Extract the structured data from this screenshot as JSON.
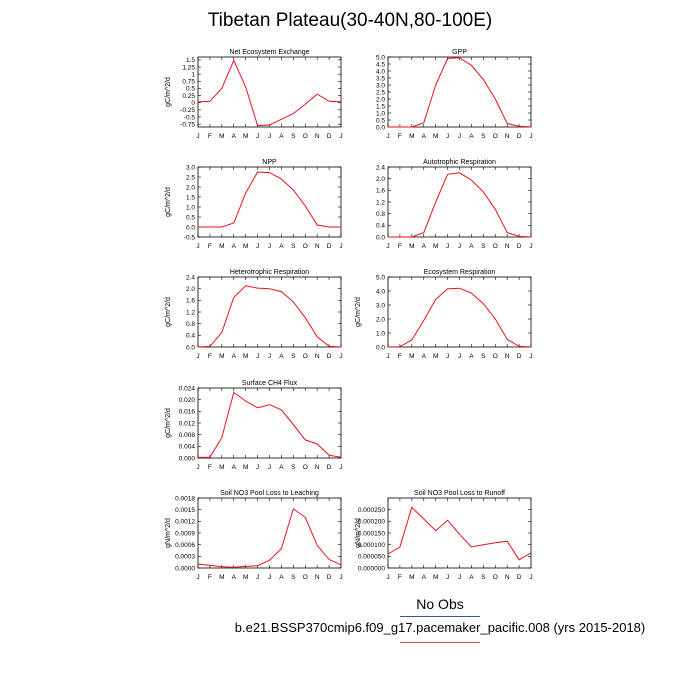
{
  "figure": {
    "title": "Tibetan Plateau(30-40N,80-100E)",
    "legend_label": "No Obs",
    "caption": "b.e21.BSSP370cmip6.f09_g17.pacemaker_pacific.008 (yrs 2015-2018)",
    "line_color": "#e8121a"
  },
  "chart_data": [
    {
      "type": "line",
      "title": "Net Ecosystem Exchange",
      "ylabel": "gC/m^2/d",
      "xlabel": "",
      "categories": [
        "J",
        "F",
        "M",
        "A",
        "M",
        "J",
        "J",
        "A",
        "S",
        "O",
        "N",
        "D",
        "J"
      ],
      "values": [
        0.03,
        0.05,
        0.5,
        1.48,
        0.55,
        -0.8,
        -0.78,
        -0.58,
        -0.38,
        -0.05,
        0.3,
        0.05,
        0.03
      ],
      "ylim": [
        -0.85,
        1.6
      ],
      "yticks": [
        -0.75,
        -0.5,
        -0.25,
        0,
        0.25,
        0.5,
        0.75,
        1,
        1.25,
        1.5
      ],
      "ytick_labels": [
        "-0.75",
        "-0.5",
        "-0.25",
        "0",
        "0.25",
        "0.5",
        "0.75",
        "1",
        "1.25",
        "1.5"
      ]
    },
    {
      "type": "line",
      "title": "GPP",
      "ylabel": "",
      "xlabel": "",
      "categories": [
        "J",
        "F",
        "M",
        "A",
        "M",
        "J",
        "J",
        "A",
        "S",
        "O",
        "N",
        "D",
        "J"
      ],
      "values": [
        0,
        0,
        0,
        0.3,
        3.0,
        4.9,
        4.95,
        4.4,
        3.4,
        2.0,
        0.25,
        0.05,
        0
      ],
      "ylim": [
        0,
        5.0
      ],
      "yticks": [
        0,
        0.5,
        1,
        1.5,
        2,
        2.5,
        3,
        3.5,
        4,
        4.5,
        5
      ],
      "ytick_labels": [
        "0.0",
        "0.5",
        "1.0",
        "1.5",
        "2.0",
        "2.5",
        "3.0",
        "3.5",
        "4.0",
        "4.5",
        "5.0"
      ]
    },
    {
      "type": "line",
      "title": "NPP",
      "ylabel": "gC/m^2/d",
      "xlabel": "",
      "categories": [
        "J",
        "F",
        "M",
        "A",
        "M",
        "J",
        "J",
        "A",
        "S",
        "O",
        "N",
        "D",
        "J"
      ],
      "values": [
        0,
        0,
        0,
        0.2,
        1.7,
        2.75,
        2.72,
        2.4,
        1.85,
        1.05,
        0.1,
        0,
        0
      ],
      "ylim": [
        -0.5,
        3.0
      ],
      "yticks": [
        -0.5,
        0,
        0.5,
        1,
        1.5,
        2,
        2.5,
        3
      ],
      "ytick_labels": [
        "-0.5",
        "0.0",
        "0.5",
        "1.0",
        "1.5",
        "2.0",
        "2.5",
        "3.0"
      ]
    },
    {
      "type": "line",
      "title": "Autotrophic Respiration",
      "ylabel": "",
      "xlabel": "",
      "categories": [
        "J",
        "F",
        "M",
        "A",
        "M",
        "J",
        "J",
        "A",
        "S",
        "O",
        "N",
        "D",
        "J"
      ],
      "values": [
        0,
        0,
        0,
        0.15,
        1.2,
        2.15,
        2.2,
        1.95,
        1.55,
        0.95,
        0.15,
        0.02,
        0
      ],
      "ylim": [
        0,
        2.4
      ],
      "yticks": [
        0,
        0.4,
        0.8,
        1.2,
        1.6,
        2.0,
        2.4
      ],
      "ytick_labels": [
        "0.0",
        "0.4",
        "0.8",
        "1.2",
        "1.6",
        "2.0",
        "2.4"
      ]
    },
    {
      "type": "line",
      "title": "Heterotrophic Respiration",
      "ylabel": "gC/m^2/d",
      "xlabel": "",
      "categories": [
        "J",
        "F",
        "M",
        "A",
        "M",
        "J",
        "J",
        "A",
        "S",
        "O",
        "N",
        "D",
        "J"
      ],
      "values": [
        0,
        0.02,
        0.5,
        1.7,
        2.1,
        2.02,
        2.0,
        1.9,
        1.55,
        1.0,
        0.35,
        0.02,
        0
      ],
      "ylim": [
        0,
        2.4
      ],
      "yticks": [
        0,
        0.4,
        0.8,
        1.2,
        1.6,
        2.0,
        2.4
      ],
      "ytick_labels": [
        "0.0",
        "0.4",
        "0.8",
        "1.2",
        "1.6",
        "2.0",
        "2.4"
      ]
    },
    {
      "type": "line",
      "title": "Ecosystem Respiration",
      "ylabel": "gC/m^2/d",
      "xlabel": "",
      "categories": [
        "J",
        "F",
        "M",
        "A",
        "M",
        "J",
        "J",
        "A",
        "S",
        "O",
        "N",
        "D",
        "J"
      ],
      "values": [
        0,
        0.02,
        0.5,
        1.9,
        3.4,
        4.15,
        4.2,
        3.85,
        3.1,
        2.0,
        0.55,
        0.05,
        0
      ],
      "ylim": [
        0,
        5.0
      ],
      "yticks": [
        0,
        1,
        2,
        3,
        4,
        5
      ],
      "ytick_labels": [
        "0.0",
        "1.0",
        "2.0",
        "3.0",
        "4.0",
        "5.0"
      ]
    },
    {
      "type": "line",
      "title": "Surface CH4 Flux",
      "ylabel": "gC/m^2/d",
      "xlabel": "",
      "categories": [
        "J",
        "F",
        "M",
        "A",
        "M",
        "J",
        "J",
        "A",
        "S",
        "O",
        "N",
        "D",
        "J"
      ],
      "values": [
        0.0002,
        0.0002,
        0.007,
        0.0225,
        0.0195,
        0.0172,
        0.0183,
        0.0165,
        0.0115,
        0.0062,
        0.0048,
        0.001,
        0.0002
      ],
      "ylim": [
        0,
        0.024
      ],
      "yticks": [
        0,
        0.004,
        0.008,
        0.012,
        0.016,
        0.02,
        0.024
      ],
      "ytick_labels": [
        "0.000",
        "0.004",
        "0.008",
        "0.012",
        "0.016",
        "0.020",
        "0.024"
      ]
    },
    {
      "type": "line",
      "title": "Soil NO3 Pool Loss to Leaching",
      "ylabel": "gN/m^2/d",
      "xlabel": "",
      "categories": [
        "J",
        "F",
        "M",
        "A",
        "M",
        "J",
        "J",
        "A",
        "S",
        "O",
        "N",
        "D",
        "J"
      ],
      "values": [
        0.0001,
        7e-05,
        3e-05,
        2e-05,
        4e-05,
        6e-05,
        0.0002,
        0.0005,
        0.00152,
        0.0013,
        0.00058,
        0.00022,
        8e-05
      ],
      "ylim": [
        0,
        0.0018
      ],
      "yticks": [
        0,
        0.0003,
        0.0006,
        0.0009,
        0.0012,
        0.0015,
        0.0018
      ],
      "ytick_labels": [
        "0.0000",
        "0.0003",
        "0.0006",
        "0.0009",
        "0.0012",
        "0.0015",
        "0.0018"
      ]
    },
    {
      "type": "line",
      "title": "Soil NO3 Pool Loss to Runoff",
      "ylabel": "gN/m^2/d",
      "xlabel": "",
      "categories": [
        "J",
        "F",
        "M",
        "A",
        "M",
        "J",
        "J",
        "A",
        "S",
        "O",
        "N",
        "D",
        "J"
      ],
      "values": [
        6e-05,
        9e-05,
        0.00026,
        0.00021,
        0.00016,
        0.000205,
        0.000145,
        9e-05,
        0.0001,
        0.000108,
        0.000115,
        3.5e-05,
        6.5e-05
      ],
      "ylim": [
        0,
        0.0003
      ],
      "yticks": [
        0,
        5e-05,
        0.0001,
        0.00015,
        0.0002,
        0.00025
      ],
      "ytick_labels": [
        "0.000000",
        "0.000050",
        "0.000100",
        "0.000150",
        "0.000200",
        "0.000250"
      ]
    }
  ]
}
